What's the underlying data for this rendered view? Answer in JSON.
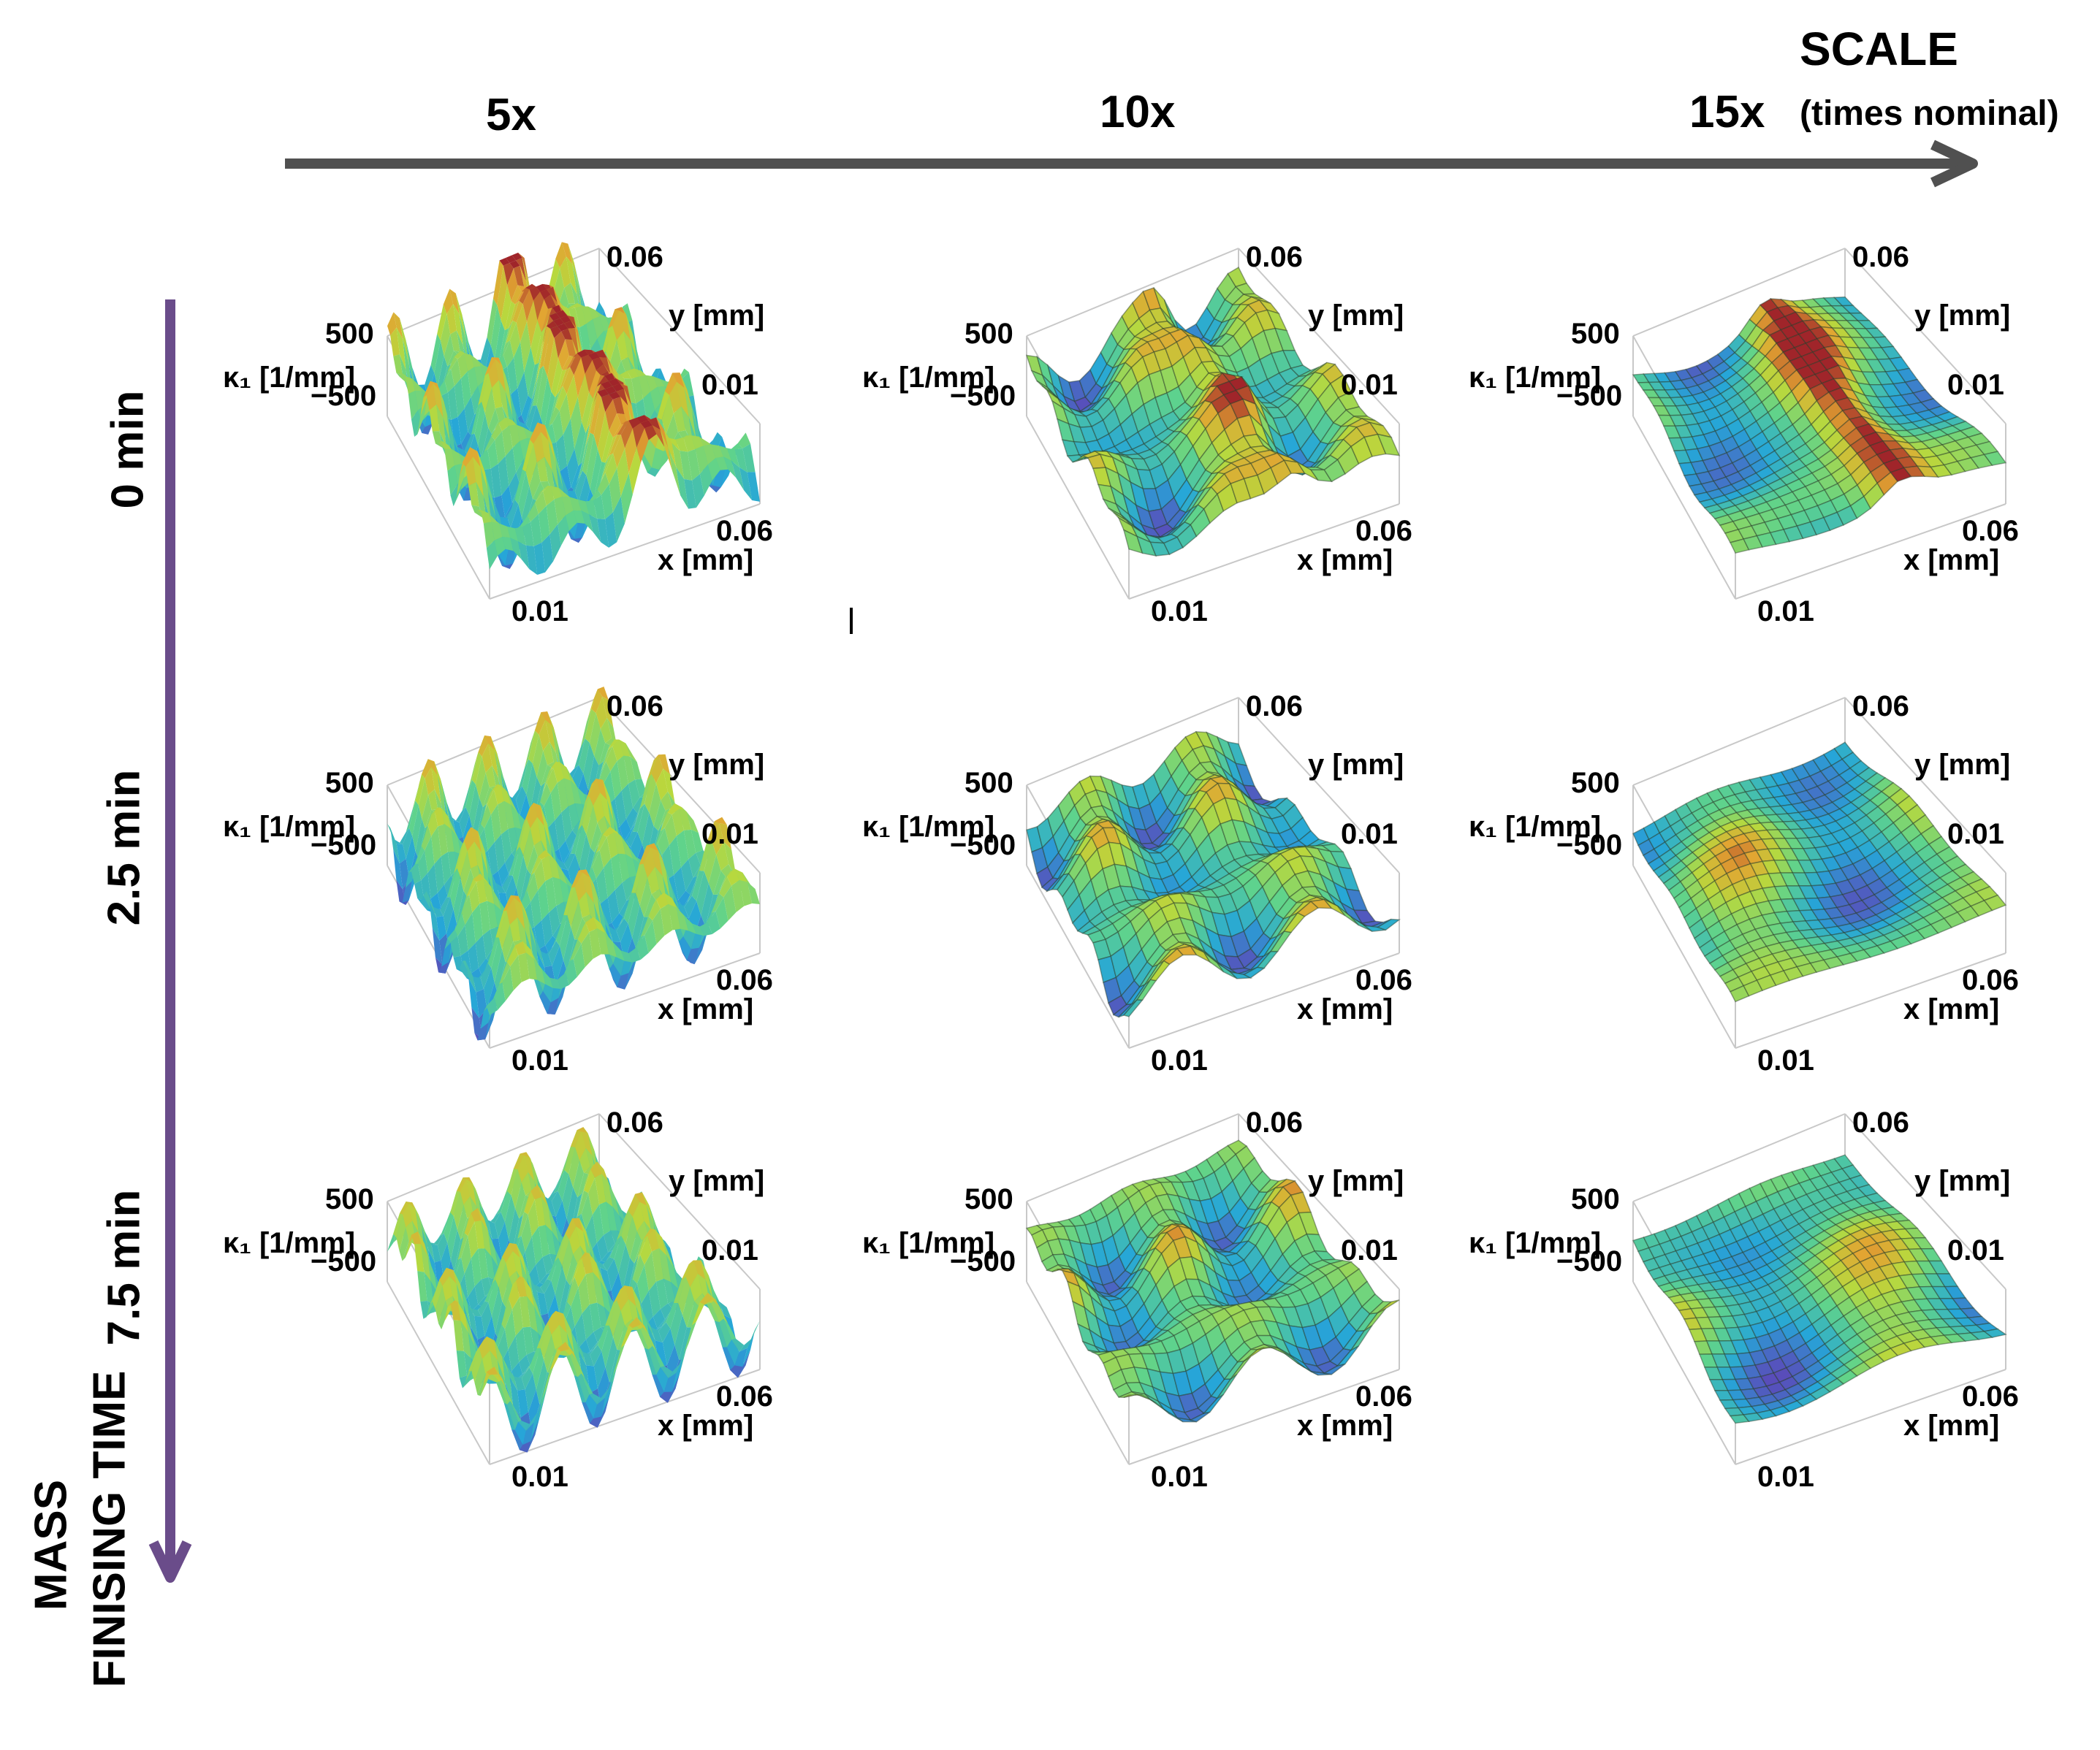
{
  "header": {
    "scale_title": "SCALE",
    "scale_subtitle": "(times nominal)",
    "columns": [
      "5x",
      "10x",
      "15x"
    ]
  },
  "rows": [
    "0 min",
    "2.5 min",
    "7.5 min"
  ],
  "time_axis": {
    "line1": "MASS",
    "line2": "FINISING TIME"
  },
  "colors": {
    "scale_arrow": "#505050",
    "time_arrow": "#6a4c8a"
  },
  "plot_labels": {
    "z_label": "κ₁ [1/mm]",
    "z_top": "500",
    "z_bottom": "−500",
    "y_label": "y [mm]",
    "y_top": "0.06",
    "y_mid": "0.01",
    "x_label": "x [mm]",
    "x_right": "0.06",
    "x_left": "0.01"
  },
  "panels": [
    {
      "name": "panel-0min-5x",
      "roughness": "high"
    },
    {
      "name": "panel-0min-10x",
      "roughness": "medium"
    },
    {
      "name": "panel-0min-15x",
      "roughness": "low"
    },
    {
      "name": "panel-2.5min-5x",
      "roughness": "high"
    },
    {
      "name": "panel-2.5min-10x",
      "roughness": "medium"
    },
    {
      "name": "panel-2.5min-15x",
      "roughness": "low"
    },
    {
      "name": "panel-7.5min-5x",
      "roughness": "high"
    },
    {
      "name": "panel-7.5min-10x",
      "roughness": "medium"
    },
    {
      "name": "panel-7.5min-15x",
      "roughness": "low"
    }
  ]
}
